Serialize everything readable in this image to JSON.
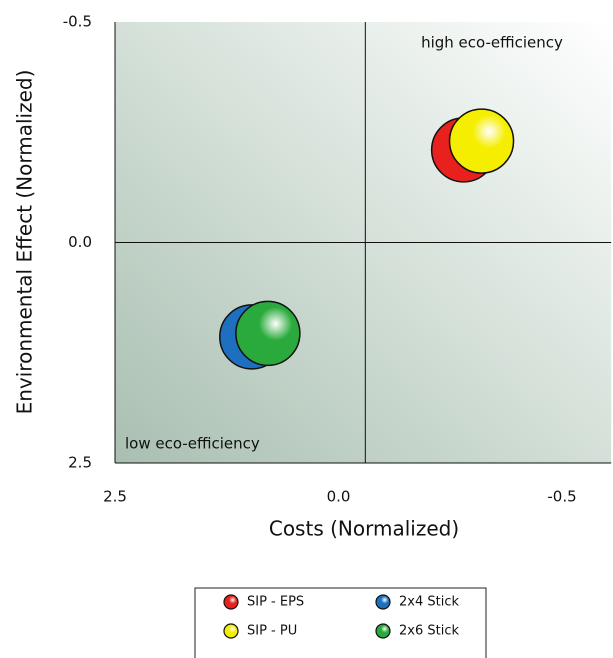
{
  "chart_data": {
    "type": "scatter",
    "xlabel": "Costs (Normalized)",
    "ylabel": "Environmental Effect (Normalized)",
    "xlim": [
      2.5,
      -0.61
    ],
    "xticks": [
      2.5,
      {
        "value": 0,
        "label": "0.0"
      },
      -0.5
    ],
    "ylim": [
      -0.5,
      2.5
    ],
    "yticks": [
      -0.5,
      {
        "value": 0,
        "label": "0.0"
      },
      2.5
    ],
    "quadrant_lines": {
      "x": -0.06,
      "y": 0
    },
    "annotations": [
      "high eco-efficiency",
      "low eco-efficiency"
    ],
    "series": [
      {
        "name": "SIP - EPS",
        "color": "#e8201e",
        "x": [
          -0.28
        ],
        "y": [
          -0.21
        ]
      },
      {
        "name": "SIP - PU",
        "color": "#f5ee00",
        "x": [
          -0.32
        ],
        "y": [
          -0.23
        ]
      },
      {
        "name": "2x4 Stick",
        "color": "#1f6fc0",
        "x": [
          0.97
        ],
        "y": [
          1.07
        ]
      },
      {
        "name": "2x6 Stick",
        "color": "#2aaa3c",
        "x": [
          0.79
        ],
        "y": [
          1.03
        ]
      }
    ]
  }
}
